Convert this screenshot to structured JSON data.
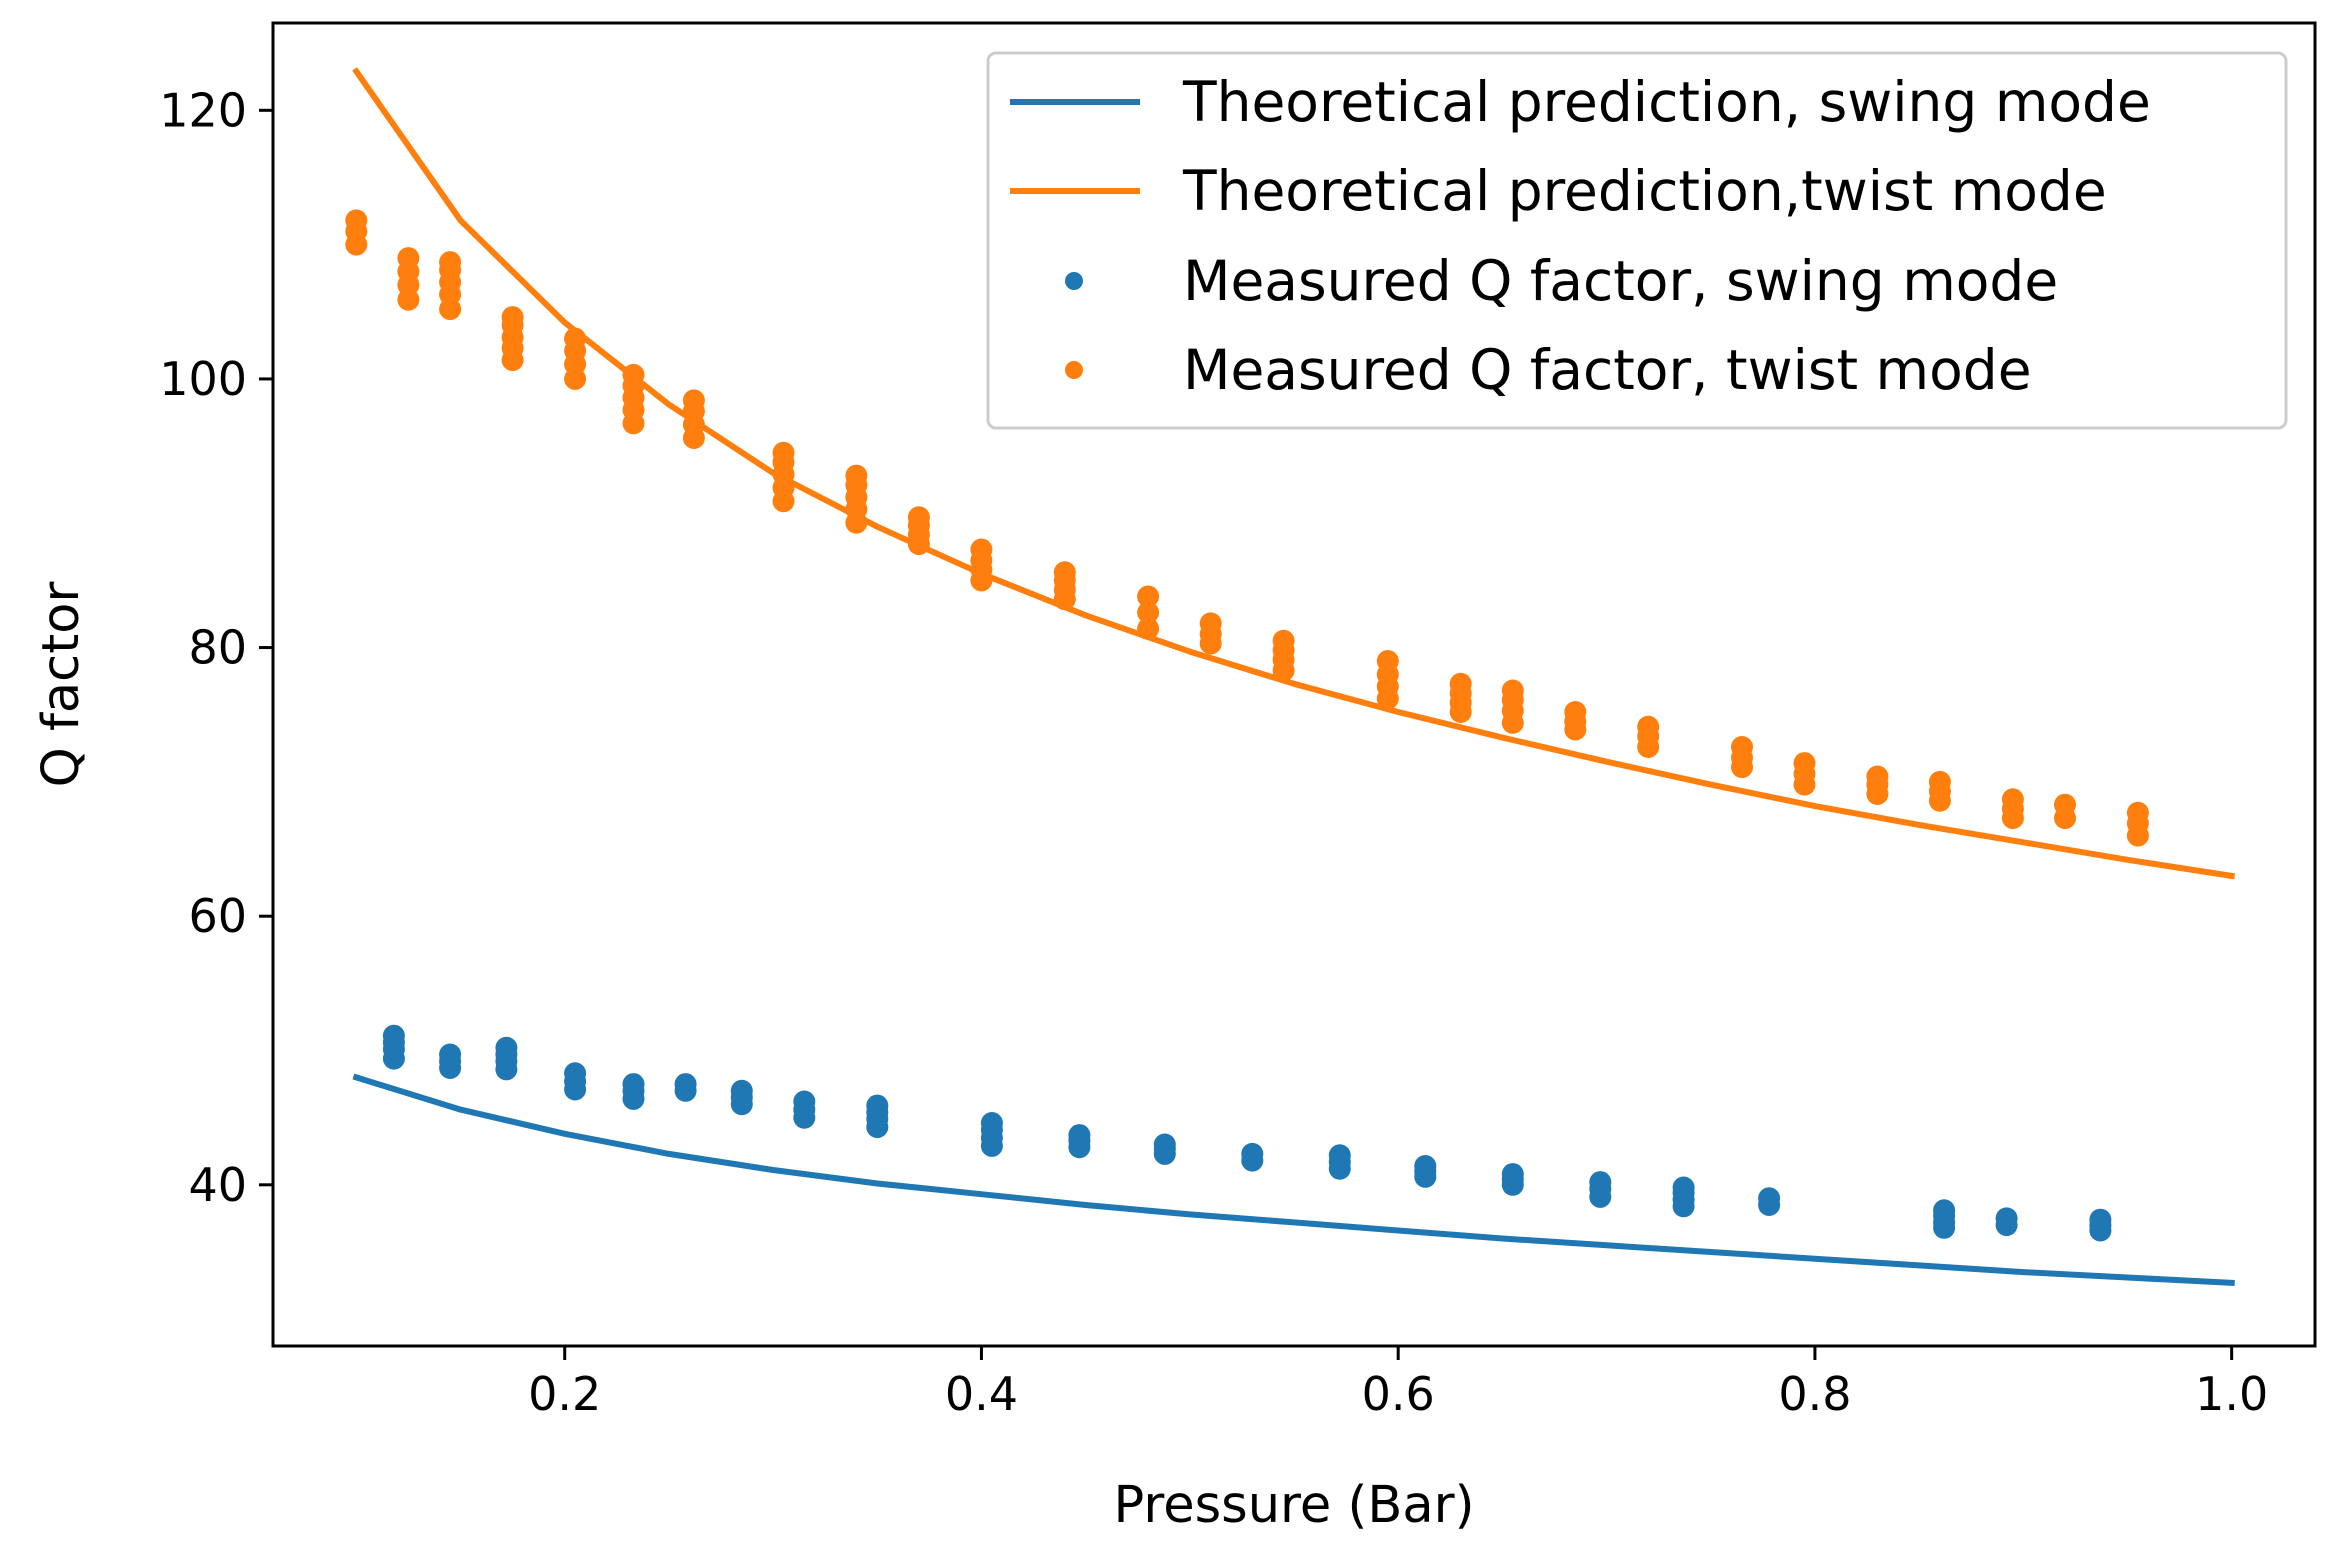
{
  "chart_data": {
    "type": "scatter",
    "xlabel": "Pressure (Bar)",
    "ylabel": "Q factor",
    "xlim": [
      0.06,
      1.04
    ],
    "ylim": [
      28.0,
      126.5
    ],
    "grid": false,
    "legend_position": "top-right",
    "x_ticks": [
      {
        "value": 0.2,
        "label": "0.2"
      },
      {
        "value": 0.4,
        "label": "0.4"
      },
      {
        "value": 0.6,
        "label": "0.6"
      },
      {
        "value": 0.8,
        "label": "0.8"
      },
      {
        "value": 1.0,
        "label": "1.0"
      }
    ],
    "y_ticks": [
      {
        "value": 40,
        "label": "40"
      },
      {
        "value": 60,
        "label": "60"
      },
      {
        "value": 80,
        "label": "80"
      },
      {
        "value": 100,
        "label": "100"
      },
      {
        "value": 120,
        "label": "120"
      }
    ],
    "colors": {
      "swing": "#1f77b4",
      "twist": "#ff7f0e"
    },
    "series": [
      {
        "name": "Theoretical prediction, swing mode",
        "kind": "line",
        "color": "#1f77b4",
        "x": [
          0.1,
          0.15,
          0.2,
          0.25,
          0.3,
          0.35,
          0.4,
          0.45,
          0.5,
          0.55,
          0.6,
          0.65,
          0.7,
          0.75,
          0.8,
          0.85,
          0.9,
          0.95,
          1.0
        ],
        "y": [
          48.0,
          45.6,
          43.8,
          42.3,
          41.1,
          40.1,
          39.3,
          38.5,
          37.8,
          37.2,
          36.6,
          36.0,
          35.5,
          35.0,
          34.5,
          34.0,
          33.5,
          33.1,
          32.7
        ]
      },
      {
        "name": "Theoretical prediction,twist mode",
        "kind": "line",
        "color": "#ff7f0e",
        "x": [
          0.1,
          0.15,
          0.2,
          0.25,
          0.3,
          0.35,
          0.4,
          0.45,
          0.5,
          0.55,
          0.6,
          0.65,
          0.7,
          0.75,
          0.8,
          0.85,
          0.9,
          0.95,
          1.0
        ],
        "y": [
          122.9,
          111.8,
          104.2,
          98.1,
          93.0,
          89.0,
          85.5,
          82.4,
          79.7,
          77.3,
          75.2,
          73.3,
          71.5,
          69.8,
          68.2,
          66.8,
          65.5,
          64.2,
          63.0
        ]
      },
      {
        "name": "Measured Q factor, swing mode",
        "kind": "scatter",
        "color": "#1f77b4",
        "x": [
          0.118,
          0.118,
          0.118,
          0.118,
          0.145,
          0.145,
          0.145,
          0.172,
          0.172,
          0.172,
          0.172,
          0.205,
          0.205,
          0.205,
          0.233,
          0.233,
          0.233,
          0.258,
          0.258,
          0.285,
          0.285,
          0.285,
          0.315,
          0.315,
          0.315,
          0.35,
          0.35,
          0.35,
          0.35,
          0.405,
          0.405,
          0.405,
          0.405,
          0.447,
          0.447,
          0.447,
          0.488,
          0.488,
          0.488,
          0.53,
          0.53,
          0.572,
          0.572,
          0.572,
          0.613,
          0.613,
          0.613,
          0.655,
          0.655,
          0.655,
          0.697,
          0.697,
          0.697,
          0.737,
          0.737,
          0.737,
          0.737,
          0.778,
          0.778,
          0.862,
          0.862,
          0.862,
          0.862,
          0.892,
          0.892,
          0.937,
          0.937,
          0.937
        ],
        "y": [
          49.4,
          50.1,
          50.6,
          51.1,
          48.7,
          49.2,
          49.7,
          48.6,
          49.2,
          49.7,
          50.2,
          47.1,
          47.7,
          48.3,
          46.4,
          47.0,
          47.5,
          47.0,
          47.5,
          46.0,
          46.5,
          47.0,
          45.0,
          45.6,
          46.2,
          44.3,
          44.9,
          45.4,
          45.9,
          42.9,
          43.5,
          44.1,
          44.6,
          42.8,
          43.3,
          43.7,
          42.3,
          42.7,
          43.0,
          41.8,
          42.3,
          41.2,
          41.7,
          42.2,
          40.6,
          41.0,
          41.4,
          40.0,
          40.4,
          40.8,
          39.1,
          39.7,
          40.2,
          38.4,
          38.9,
          39.4,
          39.8,
          38.5,
          39.0,
          36.8,
          37.2,
          37.7,
          38.1,
          37.0,
          37.5,
          36.6,
          37.0,
          37.4
        ]
      },
      {
        "name": "Measured Q factor, twist mode",
        "kind": "scatter",
        "color": "#ff7f0e",
        "x": [
          0.1,
          0.1,
          0.1,
          0.125,
          0.125,
          0.125,
          0.125,
          0.145,
          0.145,
          0.145,
          0.145,
          0.145,
          0.175,
          0.175,
          0.175,
          0.175,
          0.175,
          0.205,
          0.205,
          0.205,
          0.205,
          0.233,
          0.233,
          0.233,
          0.233,
          0.233,
          0.262,
          0.262,
          0.262,
          0.262,
          0.305,
          0.305,
          0.305,
          0.305,
          0.305,
          0.34,
          0.34,
          0.34,
          0.34,
          0.34,
          0.37,
          0.37,
          0.37,
          0.37,
          0.4,
          0.4,
          0.4,
          0.4,
          0.44,
          0.44,
          0.44,
          0.44,
          0.48,
          0.48,
          0.48,
          0.51,
          0.51,
          0.51,
          0.545,
          0.545,
          0.545,
          0.545,
          0.595,
          0.595,
          0.595,
          0.595,
          0.63,
          0.63,
          0.63,
          0.63,
          0.655,
          0.655,
          0.655,
          0.655,
          0.685,
          0.685,
          0.685,
          0.72,
          0.72,
          0.72,
          0.765,
          0.765,
          0.765,
          0.795,
          0.795,
          0.795,
          0.83,
          0.83,
          0.83,
          0.86,
          0.86,
          0.86,
          0.895,
          0.895,
          0.895,
          0.92,
          0.92,
          0.955,
          0.955,
          0.955
        ],
        "y": [
          110.0,
          111.0,
          111.8,
          105.9,
          107.0,
          108.0,
          109.0,
          105.2,
          106.3,
          107.2,
          108.1,
          108.7,
          101.4,
          102.3,
          103.1,
          104.0,
          104.6,
          100.0,
          101.1,
          102.1,
          103.0,
          96.7,
          97.7,
          98.6,
          99.5,
          100.3,
          95.6,
          96.6,
          97.6,
          98.4,
          90.9,
          91.9,
          92.9,
          93.8,
          94.5,
          89.3,
          90.3,
          91.2,
          92.1,
          92.8,
          87.7,
          88.4,
          89.1,
          89.7,
          85.0,
          85.8,
          86.5,
          87.3,
          83.6,
          84.3,
          85.0,
          85.6,
          81.4,
          82.6,
          83.8,
          80.3,
          81.0,
          81.8,
          78.3,
          79.1,
          79.8,
          80.5,
          76.2,
          77.1,
          78.0,
          79.0,
          75.2,
          75.9,
          76.6,
          77.3,
          74.4,
          75.3,
          76.1,
          76.8,
          73.9,
          74.5,
          75.2,
          72.6,
          73.4,
          74.1,
          71.1,
          71.8,
          72.6,
          69.8,
          70.6,
          71.4,
          69.1,
          69.8,
          70.4,
          68.6,
          69.3,
          70.0,
          67.3,
          68.0,
          68.7,
          67.3,
          68.3,
          66.0,
          66.9,
          67.7
        ]
      }
    ]
  }
}
